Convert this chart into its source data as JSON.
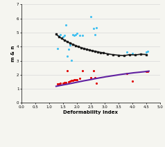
{
  "title": "",
  "xlabel": "Deformability Index",
  "ylabel": "m & n",
  "xlim": [
    0,
    5
  ],
  "ylim": [
    0,
    7
  ],
  "xticks": [
    0,
    0.5,
    1,
    1.5,
    2,
    2.5,
    3,
    3.5,
    4,
    4.5,
    5
  ],
  "yticks": [
    0,
    1,
    2,
    3,
    4,
    5,
    6,
    7
  ],
  "m_curve_x": [
    1.25,
    1.35,
    1.45,
    1.55,
    1.65,
    1.75,
    1.85,
    1.95,
    2.05,
    2.15,
    2.25,
    2.35,
    2.45,
    2.55,
    2.65,
    2.75,
    2.85,
    2.95,
    3.1,
    3.3,
    3.5,
    3.7,
    3.9,
    4.1,
    4.3,
    4.5
  ],
  "m_curve_y": [
    4.88,
    4.72,
    4.58,
    4.46,
    4.35,
    4.25,
    4.16,
    4.08,
    4.0,
    3.93,
    3.87,
    3.81,
    3.76,
    3.71,
    3.67,
    3.63,
    3.59,
    3.55,
    3.49,
    3.43,
    3.39,
    3.36,
    3.43,
    3.41,
    3.46,
    3.44
  ],
  "n_curve_x": [
    1.25,
    1.45,
    1.65,
    1.85,
    2.05,
    2.25,
    2.45,
    2.65,
    2.85,
    3.05,
    3.25,
    3.45,
    3.65,
    3.85,
    4.05,
    4.25,
    4.45,
    4.6
  ],
  "n_curve_y": [
    1.18,
    1.26,
    1.33,
    1.41,
    1.49,
    1.57,
    1.64,
    1.72,
    1.79,
    1.86,
    1.92,
    1.98,
    2.04,
    2.09,
    2.14,
    2.18,
    2.22,
    2.26
  ],
  "m_samples_x": [
    1.3,
    1.35,
    1.4,
    1.5,
    1.55,
    1.6,
    1.65,
    1.7,
    1.75,
    1.8,
    1.85,
    1.9,
    1.95,
    2.0,
    2.1,
    2.2,
    2.5,
    2.6,
    2.65,
    2.7,
    3.8,
    4.0,
    4.5,
    4.55
  ],
  "m_samples_y": [
    3.85,
    4.75,
    4.85,
    4.7,
    4.8,
    5.55,
    3.3,
    3.8,
    4.1,
    3.05,
    4.85,
    4.8,
    4.85,
    4.95,
    4.8,
    4.8,
    6.15,
    5.3,
    4.85,
    5.35,
    3.6,
    3.5,
    3.6,
    3.65
  ],
  "n_samples_x": [
    1.3,
    1.35,
    1.4,
    1.5,
    1.55,
    1.6,
    1.65,
    1.7,
    1.75,
    1.8,
    1.85,
    1.9,
    1.95,
    2.0,
    2.1,
    2.2,
    2.5,
    2.6,
    2.65,
    2.7,
    3.8,
    4.0,
    4.5,
    4.55
  ],
  "n_samples_y": [
    1.33,
    1.35,
    1.38,
    1.42,
    1.45,
    1.45,
    2.28,
    1.48,
    1.55,
    1.58,
    1.6,
    1.65,
    1.65,
    1.65,
    1.72,
    2.28,
    1.78,
    2.28,
    1.8,
    1.38,
    2.08,
    1.55,
    2.25,
    2.25
  ],
  "m_curve_color": "#1a1a1a",
  "n_curve_color": "#6020a0",
  "m_sample_color": "#40c0f0",
  "n_sample_color": "#e00000",
  "bg_color": "#f5f5f0",
  "grid_color": "#d8d8d8"
}
